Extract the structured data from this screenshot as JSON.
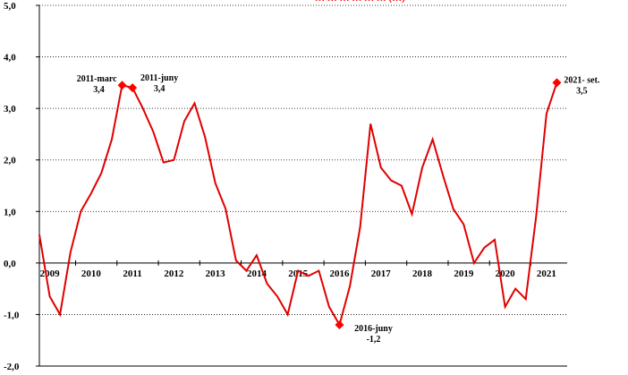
{
  "chart_data": {
    "type": "line",
    "title_fragment": "… … … … … … (…)",
    "title_color": "#ff0000",
    "line_color": "#e00000",
    "marker_color": "#ff0000",
    "ylim": [
      -2.0,
      5.0
    ],
    "y_ticks": [
      "5,0",
      "4,0",
      "3,0",
      "2,0",
      "1,0",
      "0,0",
      "-1,0",
      "-2,0"
    ],
    "y_tick_values": [
      5,
      4,
      3,
      2,
      1,
      0,
      -1,
      -2
    ],
    "x_ticks": [
      "2009",
      "2010",
      "2011",
      "2012",
      "2013",
      "2014",
      "2015",
      "2016",
      "2017",
      "2018",
      "2019",
      "2020",
      "2021"
    ],
    "x_tick_values": [
      2009,
      2010,
      2011,
      2012,
      2013,
      2014,
      2015,
      2016,
      2017,
      2018,
      2019,
      2020,
      2021
    ],
    "xlim": [
      2009.0,
      2021.75
    ],
    "grid": "horizontal-dotted",
    "series": [
      {
        "points": [
          [
            2009.0,
            0.55
          ],
          [
            2009.25,
            -0.65
          ],
          [
            2009.5,
            -1.0
          ],
          [
            2009.75,
            0.2
          ],
          [
            2010.0,
            1.0
          ],
          [
            2010.25,
            1.35
          ],
          [
            2010.5,
            1.75
          ],
          [
            2010.75,
            2.4
          ],
          [
            2011.0,
            3.45
          ],
          [
            2011.25,
            3.4
          ],
          [
            2011.5,
            3.0
          ],
          [
            2011.75,
            2.55
          ],
          [
            2012.0,
            1.95
          ],
          [
            2012.25,
            2.0
          ],
          [
            2012.5,
            2.75
          ],
          [
            2012.75,
            3.1
          ],
          [
            2013.0,
            2.45
          ],
          [
            2013.25,
            1.55
          ],
          [
            2013.5,
            1.05
          ],
          [
            2013.75,
            0.05
          ],
          [
            2014.0,
            -0.15
          ],
          [
            2014.25,
            0.15
          ],
          [
            2014.5,
            -0.4
          ],
          [
            2014.75,
            -0.65
          ],
          [
            2015.0,
            -1.0
          ],
          [
            2015.25,
            -0.15
          ],
          [
            2015.5,
            -0.25
          ],
          [
            2015.75,
            -0.15
          ],
          [
            2016.0,
            -0.85
          ],
          [
            2016.25,
            -1.2
          ],
          [
            2016.5,
            -0.45
          ],
          [
            2016.75,
            0.7
          ],
          [
            2017.0,
            2.7
          ],
          [
            2017.25,
            1.85
          ],
          [
            2017.5,
            1.6
          ],
          [
            2017.75,
            1.5
          ],
          [
            2018.0,
            0.95
          ],
          [
            2018.25,
            1.85
          ],
          [
            2018.5,
            2.4
          ],
          [
            2018.75,
            1.7
          ],
          [
            2019.0,
            1.05
          ],
          [
            2019.25,
            0.75
          ],
          [
            2019.5,
            0.0
          ],
          [
            2019.75,
            0.3
          ],
          [
            2020.0,
            0.45
          ],
          [
            2020.25,
            -0.85
          ],
          [
            2020.5,
            -0.5
          ],
          [
            2020.75,
            -0.7
          ],
          [
            2021.0,
            0.9
          ],
          [
            2021.25,
            2.9
          ],
          [
            2021.5,
            3.5
          ]
        ]
      }
    ],
    "annotations": [
      {
        "x": 2011.0,
        "y": 3.45,
        "line1": "2011-marc",
        "line2": "3,4",
        "anchor": "left"
      },
      {
        "x": 2011.25,
        "y": 3.4,
        "line1": "2011-juny",
        "line2": "3,4",
        "anchor": "right-above"
      },
      {
        "x": 2016.25,
        "y": -1.2,
        "line1": "2016-juny",
        "line2": "-1,2",
        "anchor": "right-below"
      },
      {
        "x": 2021.5,
        "y": 3.5,
        "line1": "2021- set.",
        "line2": "3,5",
        "anchor": "right"
      }
    ]
  }
}
